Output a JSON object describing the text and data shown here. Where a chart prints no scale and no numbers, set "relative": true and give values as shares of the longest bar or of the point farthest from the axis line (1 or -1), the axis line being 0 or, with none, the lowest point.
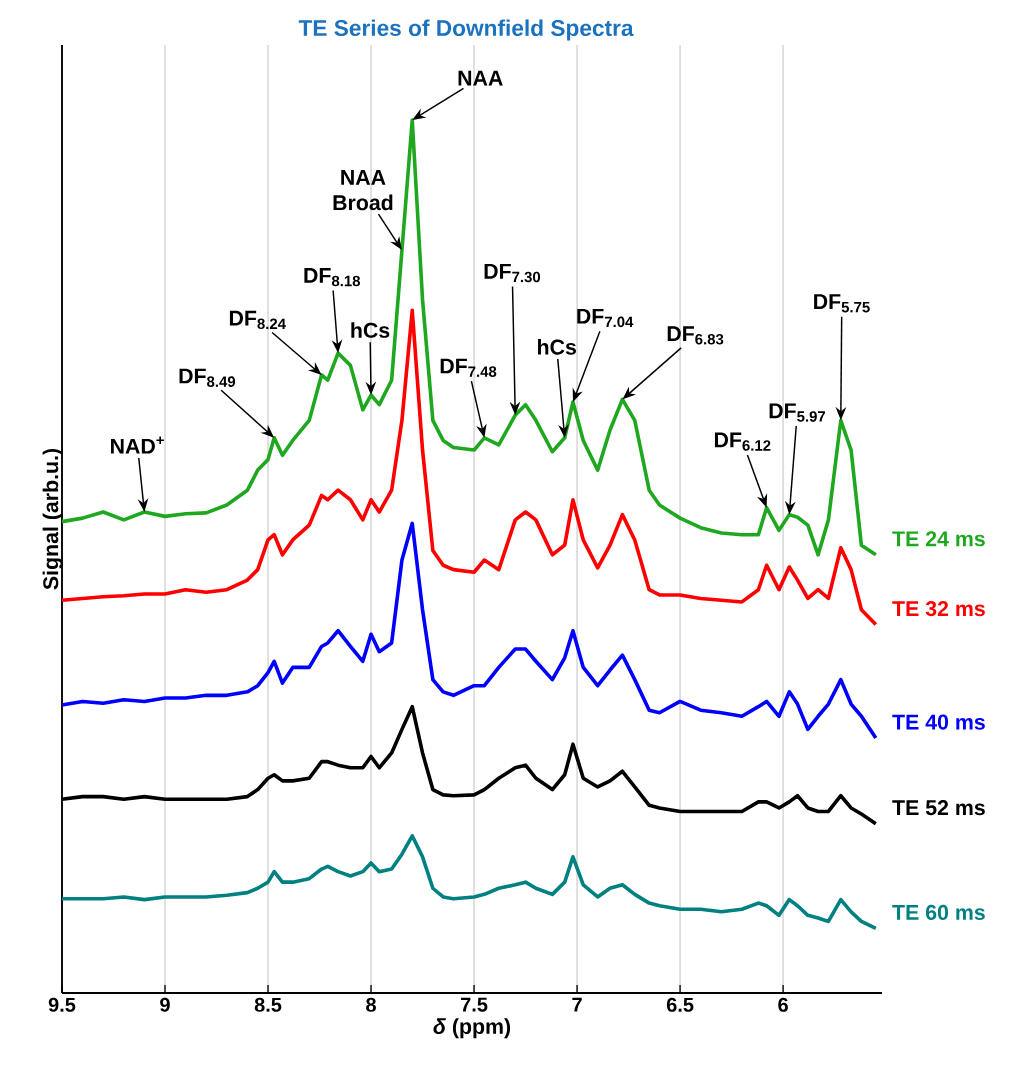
{
  "chart_data": {
    "type": "line",
    "relative": true,
    "title": "TE Series of Downfield Spectra",
    "xlabel": "*δ* (ppm)",
    "ylabel": "Signal (arb.u.)",
    "xlim": [
      9.5,
      5.52
    ],
    "xticks": [
      9.5,
      9,
      8.5,
      8,
      7.5,
      7,
      6.5,
      6
    ],
    "grid": "x",
    "x": [
      9.5,
      9.4,
      9.3,
      9.2,
      9.1,
      9.0,
      8.9,
      8.8,
      8.7,
      8.6,
      8.55,
      8.5,
      8.47,
      8.43,
      8.38,
      8.3,
      8.24,
      8.21,
      8.16,
      8.1,
      8.04,
      8.0,
      7.96,
      7.9,
      7.85,
      7.8,
      7.75,
      7.7,
      7.65,
      7.6,
      7.5,
      7.45,
      7.38,
      7.3,
      7.25,
      7.2,
      7.12,
      7.06,
      7.02,
      6.97,
      6.9,
      6.84,
      6.78,
      6.72,
      6.65,
      6.6,
      6.5,
      6.4,
      6.3,
      6.2,
      6.12,
      6.08,
      6.02,
      5.97,
      5.93,
      5.88,
      5.83,
      5.78,
      5.72,
      5.67,
      5.62,
      5.55
    ],
    "series": [
      {
        "name": "TE 24 ms",
        "color": "#1fa81f",
        "values": [
          0.54,
          0.544,
          0.551,
          0.542,
          0.551,
          0.546,
          0.549,
          0.55,
          0.559,
          0.576,
          0.599,
          0.611,
          0.636,
          0.616,
          0.633,
          0.656,
          0.708,
          0.702,
          0.733,
          0.719,
          0.668,
          0.685,
          0.674,
          0.702,
          0.851,
          1.0,
          0.794,
          0.656,
          0.633,
          0.625,
          0.622,
          0.636,
          0.628,
          0.662,
          0.674,
          0.656,
          0.62,
          0.636,
          0.677,
          0.633,
          0.599,
          0.645,
          0.68,
          0.656,
          0.576,
          0.559,
          0.544,
          0.533,
          0.527,
          0.525,
          0.525,
          0.556,
          0.53,
          0.548,
          0.545,
          0.536,
          0.502,
          0.542,
          0.656,
          0.622,
          0.513,
          0.502
        ]
      },
      {
        "name": "TE 32 ms",
        "color": "#ff0000",
        "values": [
          0.45,
          0.452,
          0.454,
          0.455,
          0.457,
          0.457,
          0.462,
          0.459,
          0.462,
          0.473,
          0.485,
          0.519,
          0.525,
          0.502,
          0.519,
          0.536,
          0.57,
          0.565,
          0.576,
          0.565,
          0.542,
          0.565,
          0.551,
          0.576,
          0.656,
          0.782,
          0.622,
          0.507,
          0.49,
          0.485,
          0.482,
          0.496,
          0.485,
          0.542,
          0.551,
          0.542,
          0.502,
          0.513,
          0.565,
          0.519,
          0.487,
          0.513,
          0.548,
          0.519,
          0.462,
          0.456,
          0.456,
          0.452,
          0.45,
          0.448,
          0.462,
          0.49,
          0.462,
          0.488,
          0.473,
          0.452,
          0.462,
          0.452,
          0.51,
          0.485,
          0.439,
          0.422
        ]
      },
      {
        "name": "TE 40 ms",
        "color": "#0000ff",
        "values": [
          0.33,
          0.334,
          0.332,
          0.336,
          0.334,
          0.338,
          0.338,
          0.341,
          0.341,
          0.345,
          0.352,
          0.367,
          0.38,
          0.355,
          0.373,
          0.373,
          0.397,
          0.401,
          0.415,
          0.397,
          0.38,
          0.411,
          0.391,
          0.401,
          0.496,
          0.538,
          0.439,
          0.359,
          0.345,
          0.341,
          0.352,
          0.352,
          0.373,
          0.394,
          0.394,
          0.38,
          0.359,
          0.384,
          0.415,
          0.373,
          0.352,
          0.37,
          0.387,
          0.359,
          0.324,
          0.321,
          0.334,
          0.324,
          0.321,
          0.317,
          0.328,
          0.334,
          0.317,
          0.345,
          0.331,
          0.302,
          0.317,
          0.331,
          0.359,
          0.331,
          0.317,
          0.292
        ]
      },
      {
        "name": "TE 52 ms",
        "color": "#000000",
        "values": [
          0.222,
          0.225,
          0.225,
          0.222,
          0.225,
          0.222,
          0.222,
          0.222,
          0.222,
          0.225,
          0.233,
          0.246,
          0.25,
          0.243,
          0.243,
          0.246,
          0.265,
          0.265,
          0.261,
          0.258,
          0.258,
          0.271,
          0.258,
          0.275,
          0.302,
          0.328,
          0.275,
          0.233,
          0.227,
          0.226,
          0.227,
          0.233,
          0.246,
          0.258,
          0.261,
          0.246,
          0.233,
          0.25,
          0.285,
          0.246,
          0.236,
          0.243,
          0.254,
          0.236,
          0.215,
          0.212,
          0.208,
          0.208,
          0.208,
          0.208,
          0.219,
          0.219,
          0.212,
          0.219,
          0.226,
          0.212,
          0.208,
          0.208,
          0.226,
          0.212,
          0.205,
          0.194
        ]
      },
      {
        "name": "TE 60 ms",
        "color": "#008080",
        "values": [
          0.108,
          0.108,
          0.108,
          0.11,
          0.107,
          0.11,
          0.11,
          0.11,
          0.112,
          0.115,
          0.12,
          0.127,
          0.139,
          0.127,
          0.127,
          0.131,
          0.142,
          0.145,
          0.139,
          0.134,
          0.139,
          0.149,
          0.139,
          0.142,
          0.159,
          0.18,
          0.156,
          0.12,
          0.11,
          0.108,
          0.11,
          0.113,
          0.12,
          0.124,
          0.127,
          0.12,
          0.113,
          0.127,
          0.156,
          0.124,
          0.11,
          0.12,
          0.124,
          0.113,
          0.103,
          0.1,
          0.096,
          0.096,
          0.093,
          0.096,
          0.103,
          0.1,
          0.089,
          0.107,
          0.1,
          0.089,
          0.086,
          0.082,
          0.107,
          0.093,
          0.082,
          0.074
        ]
      }
    ],
    "annotations": [
      {
        "text": "NAD$^{+}$",
        "x": 9.1,
        "y": 0.551
      },
      {
        "text": "DF$_{8.49}$",
        "x": 8.47,
        "y": 0.636
      },
      {
        "text": "DF$_{8.24}$",
        "x": 8.24,
        "y": 0.708
      },
      {
        "text": "DF$_{8.18}$",
        "x": 8.16,
        "y": 0.733
      },
      {
        "text": "hCs",
        "x": 8.0,
        "y": 0.685
      },
      {
        "text": "NAA Broad",
        "x": 7.85,
        "y": 0.851
      },
      {
        "text": "NAA",
        "x": 7.8,
        "y": 1.0
      },
      {
        "text": "DF$_{7.48}$",
        "x": 7.45,
        "y": 0.636
      },
      {
        "text": "DF$_{7.30}$",
        "x": 7.3,
        "y": 0.662
      },
      {
        "text": "hCs",
        "x": 7.06,
        "y": 0.636
      },
      {
        "text": "DF$_{7.04}$",
        "x": 7.02,
        "y": 0.677
      },
      {
        "text": "DF$_{6.83}$",
        "x": 6.78,
        "y": 0.68
      },
      {
        "text": "DF$_{6.12}$",
        "x": 6.08,
        "y": 0.556
      },
      {
        "text": "DF$_{5.97}$",
        "x": 5.97,
        "y": 0.548
      },
      {
        "text": "DF$_{5.75}$",
        "x": 5.72,
        "y": 0.656
      }
    ]
  }
}
